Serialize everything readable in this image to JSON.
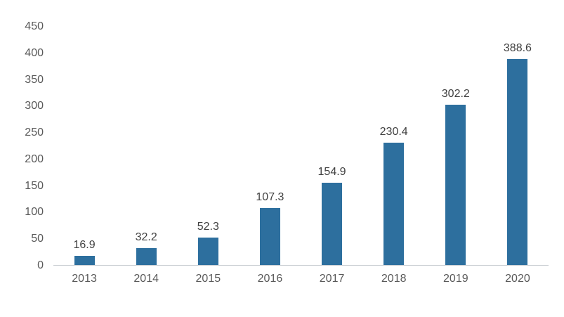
{
  "chart_data": {
    "type": "bar",
    "categories": [
      "2013",
      "2014",
      "2015",
      "2016",
      "2017",
      "2018",
      "2019",
      "2020"
    ],
    "values": [
      16.9,
      32.2,
      52.3,
      107.3,
      154.9,
      230.4,
      302.2,
      388.6
    ],
    "value_labels": [
      "16.9",
      "32.2",
      "52.3",
      "107.3",
      "154.9",
      "230.4",
      "302.2",
      "388.6"
    ],
    "title": "",
    "xlabel": "",
    "ylabel": "",
    "ylim": [
      0,
      450
    ],
    "yticks": [
      0,
      50,
      100,
      150,
      200,
      250,
      300,
      350,
      400,
      450
    ],
    "grid": false,
    "legend": false,
    "colors": {
      "bar": "#2D6F9E",
      "axis_line": "#C9CDD2",
      "value_label": "#404040",
      "tick_label": "#595959"
    }
  }
}
